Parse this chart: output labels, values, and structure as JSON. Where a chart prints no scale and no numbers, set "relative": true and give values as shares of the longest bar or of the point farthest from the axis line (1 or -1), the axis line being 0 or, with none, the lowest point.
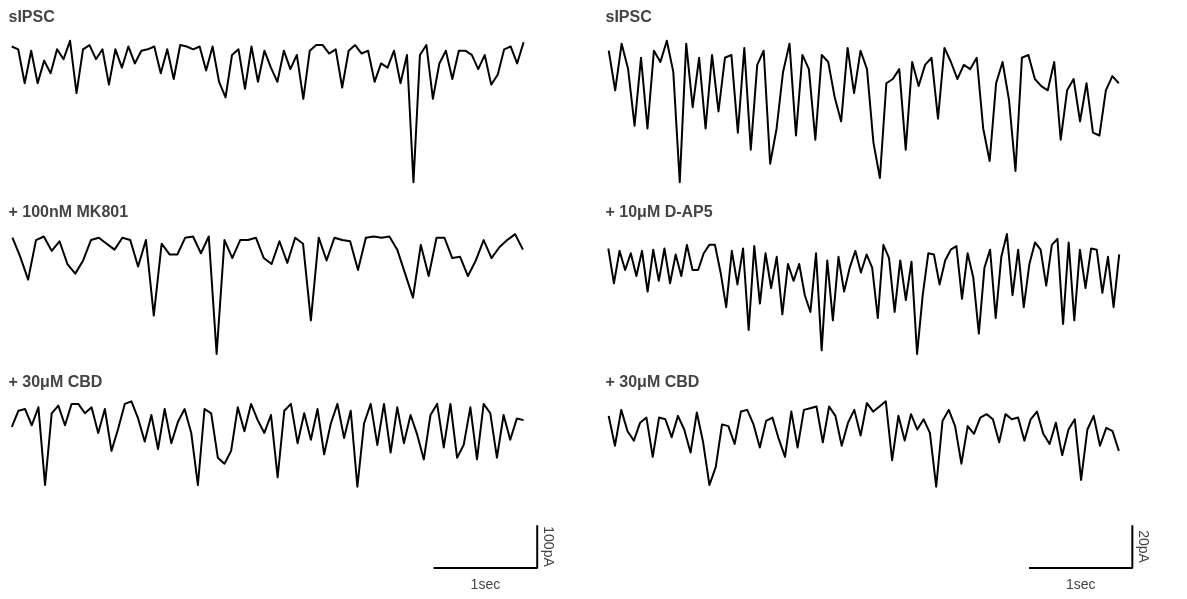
{
  "chart_data": [
    {
      "type": "line",
      "title": "sIPSC",
      "relative": true,
      "color": "#000000",
      "categories": [
        null,
        null,
        null,
        null,
        null,
        null,
        null,
        null,
        null,
        null,
        null,
        null,
        null,
        null,
        null,
        null,
        null,
        null,
        null,
        null,
        null,
        null,
        null,
        null,
        null,
        null,
        null,
        null,
        null,
        null,
        null,
        null,
        null,
        null,
        null,
        null,
        null,
        null,
        null,
        null,
        null,
        null,
        null,
        null,
        null,
        null,
        null,
        null,
        null,
        null,
        null,
        null,
        null,
        null,
        null,
        null,
        null,
        null,
        null,
        null,
        null,
        null,
        null,
        null,
        null,
        null,
        null,
        null,
        null,
        null,
        null,
        null,
        null,
        null,
        null,
        null,
        null,
        null,
        null,
        null
      ],
      "values": [
        0.96,
        0.94,
        0.7,
        0.93,
        0.7,
        0.86,
        0.77,
        0.94,
        0.87,
        1.0,
        0.63,
        0.94,
        0.97,
        0.87,
        0.94,
        0.69,
        0.94,
        0.81,
        0.96,
        0.84,
        0.93,
        0.94,
        0.96,
        0.77,
        0.94,
        0.73,
        0.97,
        0.96,
        0.94,
        0.96,
        0.79,
        0.96,
        0.71,
        0.6,
        0.9,
        0.94,
        0.66,
        0.96,
        0.71,
        0.93,
        0.81,
        0.71,
        0.93,
        0.8,
        0.9,
        0.59,
        0.93,
        0.97,
        0.97,
        0.91,
        0.94,
        0.67,
        0.93,
        0.97,
        0.91,
        0.93,
        0.71,
        0.84,
        0.81,
        0.93,
        0.7,
        0.9,
        0,
        0.9,
        0.97,
        0.59,
        0.84,
        0.93,
        0.73,
        0.93,
        0.93,
        0.9,
        0.8,
        0.9,
        0.69,
        0.76,
        0.94,
        0.96,
        0.84,
        0.99
      ]
    },
    {
      "type": "line",
      "title": "sIPSC",
      "relative": true,
      "color": "#000000",
      "categories": [
        null,
        null,
        null,
        null,
        null,
        null,
        null,
        null,
        null,
        null,
        null,
        null,
        null,
        null,
        null,
        null,
        null,
        null,
        null,
        null,
        null,
        null,
        null,
        null,
        null,
        null,
        null,
        null,
        null,
        null,
        null,
        null,
        null,
        null,
        null,
        null,
        null,
        null,
        null,
        null,
        null,
        null,
        null,
        null,
        null,
        null,
        null,
        null,
        null,
        null,
        null,
        null,
        null,
        null,
        null,
        null,
        null,
        null,
        null,
        null,
        null,
        null,
        null,
        null,
        null,
        null,
        null,
        null,
        null,
        null,
        null,
        null,
        null,
        null,
        null,
        null,
        null,
        null,
        null,
        null
      ],
      "values": [
        0.93,
        0.65,
        0.98,
        0.8,
        0.4,
        0.88,
        0.38,
        0.93,
        0.85,
        1.0,
        0.78,
        0,
        0.98,
        0.53,
        0.88,
        0.38,
        0.9,
        0.5,
        0.88,
        0.9,
        0.35,
        0.95,
        0.23,
        0.83,
        0.93,
        0.13,
        0.38,
        0.78,
        0.98,
        0.33,
        0.9,
        0.8,
        0.3,
        0.9,
        0.85,
        0.6,
        0.43,
        0.95,
        0.63,
        0.93,
        0.8,
        0.28,
        0.03,
        0.7,
        0.73,
        0.8,
        0.23,
        0.85,
        0.68,
        0.83,
        0.88,
        0.45,
        0.95,
        0.85,
        0.73,
        0.83,
        0.8,
        0.88,
        0.38,
        0.15,
        0.7,
        0.85,
        0.58,
        0.08,
        0.88,
        0.9,
        0.73,
        0.68,
        0.65,
        0.85,
        0.3,
        0.65,
        0.73,
        0.43,
        0.7,
        0.35,
        0.33,
        0.65,
        0.75,
        0.7
      ]
    },
    {
      "type": "line",
      "title": "+ 100nM MK801",
      "relative": true,
      "color": "#000000",
      "categories": [
        null,
        null,
        null,
        null,
        null,
        null,
        null,
        null,
        null,
        null,
        null,
        null,
        null,
        null,
        null,
        null,
        null,
        null,
        null,
        null,
        null,
        null,
        null,
        null,
        null,
        null,
        null,
        null,
        null,
        null,
        null,
        null,
        null,
        null,
        null,
        null,
        null,
        null,
        null,
        null,
        null,
        null,
        null,
        null,
        null,
        null,
        null,
        null,
        null,
        null,
        null,
        null,
        null,
        null,
        null,
        null,
        null,
        null,
        null,
        null,
        null,
        null,
        null,
        null,
        null,
        null
      ],
      "values": [
        0.97,
        0.81,
        0.62,
        0.95,
        0.98,
        0.86,
        0.94,
        0.75,
        0.67,
        0.78,
        0.95,
        0.97,
        0.92,
        0.87,
        0.97,
        0.95,
        0.73,
        0.95,
        0.32,
        0.92,
        0.83,
        0.83,
        0.97,
        0.98,
        0.84,
        0.98,
        0,
        0.95,
        0.8,
        0.95,
        0.95,
        0.97,
        0.8,
        0.75,
        0.94,
        0.76,
        0.97,
        0.92,
        0.28,
        0.97,
        0.78,
        0.97,
        0.95,
        0.94,
        0.7,
        0.97,
        0.98,
        0.97,
        0.98,
        0.87,
        0.67,
        0.47,
        0.91,
        0.65,
        0.97,
        0.97,
        0.8,
        0.81,
        0.65,
        0.78,
        0.95,
        0.8,
        0.89,
        0.95,
        1.0,
        0.87
      ]
    },
    {
      "type": "line",
      "title": "+ 10μM D-AP5",
      "relative": true,
      "color": "#000000",
      "categories": [
        null,
        null,
        null,
        null,
        null,
        null,
        null,
        null,
        null,
        null,
        null,
        null,
        null,
        null,
        null,
        null,
        null,
        null,
        null,
        null,
        null,
        null,
        null,
        null,
        null,
        null,
        null,
        null,
        null,
        null,
        null,
        null,
        null,
        null,
        null,
        null,
        null,
        null,
        null,
        null,
        null,
        null,
        null,
        null,
        null,
        null,
        null,
        null,
        null,
        null,
        null,
        null,
        null,
        null,
        null,
        null,
        null,
        null,
        null,
        null,
        null,
        null,
        null,
        null,
        null,
        null,
        null,
        null,
        null,
        null,
        null,
        null,
        null,
        null,
        null,
        null,
        null,
        null,
        null,
        null,
        null,
        null,
        null,
        null,
        null,
        null,
        null,
        null,
        null,
        null,
        null,
        null
      ],
      "values": [
        0.88,
        0.59,
        0.86,
        0.7,
        0.84,
        0.65,
        0.86,
        0.52,
        0.87,
        0.61,
        0.88,
        0.59,
        0.83,
        0.65,
        0.91,
        0.7,
        0.7,
        0.84,
        0.91,
        0.91,
        0.68,
        0.39,
        0.86,
        0.58,
        0.88,
        0.2,
        0.9,
        0.42,
        0.84,
        0.55,
        0.81,
        0.33,
        0.75,
        0.61,
        0.75,
        0.49,
        0.35,
        0.84,
        0.03,
        0.78,
        0.28,
        0.81,
        0.52,
        0.72,
        0.86,
        0.68,
        0.83,
        0.72,
        0.3,
        0.91,
        0.8,
        0.35,
        0.78,
        0.45,
        0.77,
        0,
        0.49,
        0.84,
        0.83,
        0.58,
        0.78,
        0.87,
        0.9,
        0.46,
        0.84,
        0.64,
        0.17,
        0.72,
        0.87,
        0.3,
        0.81,
        1.0,
        0.49,
        0.87,
        0.39,
        0.75,
        0.93,
        0.87,
        0.57,
        0.91,
        0.96,
        0.25,
        0.93,
        0.28,
        0.87,
        0.55,
        0.88,
        0.87,
        0.51,
        0.81,
        0.39,
        0.83
      ]
    },
    {
      "type": "line",
      "title": "+ 30μM CBD",
      "relative": true,
      "color": "#000000",
      "annotations": [
        "100pA",
        "1sec"
      ],
      "categories": [
        null,
        null,
        null,
        null,
        null,
        null,
        null,
        null,
        null,
        null,
        null,
        null,
        null,
        null,
        null,
        null,
        null,
        null,
        null,
        null,
        null,
        null,
        null,
        null,
        null,
        null,
        null,
        null,
        null,
        null,
        null,
        null,
        null,
        null,
        null,
        null,
        null,
        null,
        null,
        null,
        null,
        null,
        null,
        null,
        null,
        null,
        null,
        null,
        null,
        null,
        null,
        null,
        null,
        null,
        null,
        null,
        null,
        null,
        null,
        null,
        null,
        null,
        null,
        null,
        null,
        null,
        null,
        null,
        null,
        null,
        null,
        null,
        null,
        null,
        null,
        null,
        null,
        null
      ],
      "values": [
        0.7,
        0.89,
        0.91,
        0.72,
        0.93,
        0.02,
        0.86,
        0.95,
        0.72,
        0.97,
        0.97,
        0.86,
        0.93,
        0.63,
        0.91,
        0.42,
        0.68,
        0.97,
        1.0,
        0.8,
        0.53,
        0.84,
        0.44,
        0.91,
        0.51,
        0.76,
        0.91,
        0.63,
        0.02,
        0.91,
        0.86,
        0.34,
        0.27,
        0.42,
        0.93,
        0.65,
        0.97,
        0.78,
        0.63,
        0.84,
        0.11,
        0.89,
        0.97,
        0.51,
        0.86,
        0.55,
        0.91,
        0.38,
        0.74,
        0.97,
        0.57,
        0.89,
        0,
        0.74,
        0.97,
        0.49,
        0.97,
        0.4,
        0.93,
        0.51,
        0.84,
        0.61,
        0.32,
        0.84,
        0.97,
        0.46,
        0.97,
        0.34,
        0.49,
        0.93,
        0.32,
        0.97,
        0.86,
        0.34,
        0.84,
        0.55,
        0.8,
        0.78
      ]
    },
    {
      "type": "line",
      "title": "+ 30μM CBD",
      "relative": true,
      "color": "#000000",
      "annotations": [
        "20pA",
        "1sec"
      ],
      "categories": [
        null,
        null,
        null,
        null,
        null,
        null,
        null,
        null,
        null,
        null,
        null,
        null,
        null,
        null,
        null,
        null,
        null,
        null,
        null,
        null,
        null,
        null,
        null,
        null,
        null,
        null,
        null,
        null,
        null,
        null,
        null,
        null,
        null,
        null,
        null,
        null,
        null,
        null,
        null,
        null,
        null,
        null,
        null,
        null,
        null,
        null,
        null,
        null,
        null,
        null,
        null,
        null,
        null,
        null,
        null,
        null,
        null,
        null,
        null,
        null,
        null,
        null,
        null,
        null,
        null,
        null,
        null,
        null,
        null,
        null,
        null,
        null,
        null,
        null,
        null,
        null,
        null,
        null,
        null,
        null,
        null,
        null
      ],
      "values": [
        0.83,
        0.48,
        0.9,
        0.65,
        0.54,
        0.75,
        0.81,
        0.35,
        0.81,
        0.79,
        0.58,
        0.83,
        0.67,
        0.4,
        0.87,
        0.52,
        0.02,
        0.23,
        0.73,
        0.71,
        0.5,
        0.88,
        0.9,
        0.73,
        0.46,
        0.77,
        0.81,
        0.56,
        0.35,
        0.88,
        0.46,
        0.9,
        0.92,
        0.94,
        0.52,
        0.94,
        0.83,
        0.48,
        0.75,
        0.9,
        0.6,
        0.98,
        0.88,
        0.94,
        1.0,
        0.31,
        0.83,
        0.54,
        0.85,
        0.67,
        0.79,
        0.63,
        0,
        0.77,
        0.9,
        0.71,
        0.27,
        0.71,
        0.62,
        0.81,
        0.85,
        0.79,
        0.52,
        0.85,
        0.79,
        0.81,
        0.54,
        0.79,
        0.88,
        0.62,
        0.5,
        0.75,
        0.37,
        0.67,
        0.79,
        0.08,
        0.67,
        0.83,
        0.48,
        0.69,
        0.65,
        0.42
      ]
    }
  ]
}
